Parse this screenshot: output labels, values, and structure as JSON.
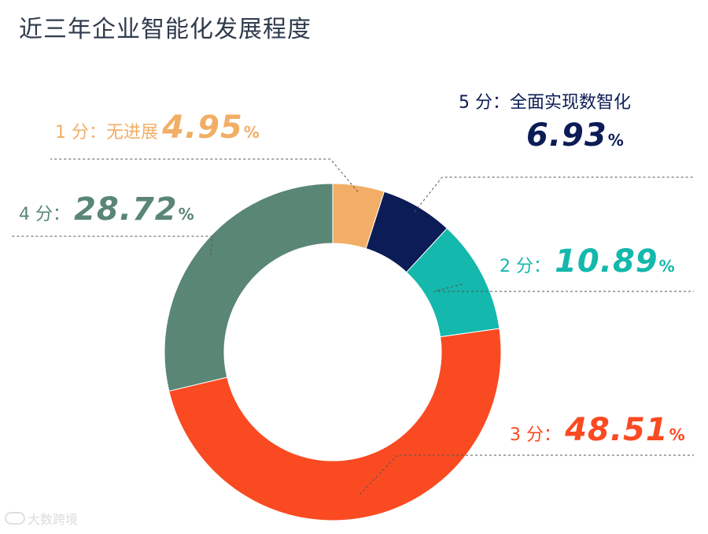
{
  "title": "近三年企业智能化发展程度",
  "watermark": "大数跨境",
  "chart_data": {
    "type": "pie",
    "style": "donut",
    "unit": "%",
    "slices": [
      {
        "category": "1 分：无进展",
        "value": 4.95,
        "color": "#f2ae66"
      },
      {
        "category": "5 分：全面实现数智化",
        "value": 6.93,
        "color": "#0c1c56"
      },
      {
        "category": "2 分：",
        "value": 10.89,
        "color": "#14b8ac"
      },
      {
        "category": "3 分：",
        "value": 48.51,
        "color": "#fa4a22"
      },
      {
        "category": "4 分：",
        "value": 28.72,
        "color": "#5a8676"
      }
    ]
  }
}
